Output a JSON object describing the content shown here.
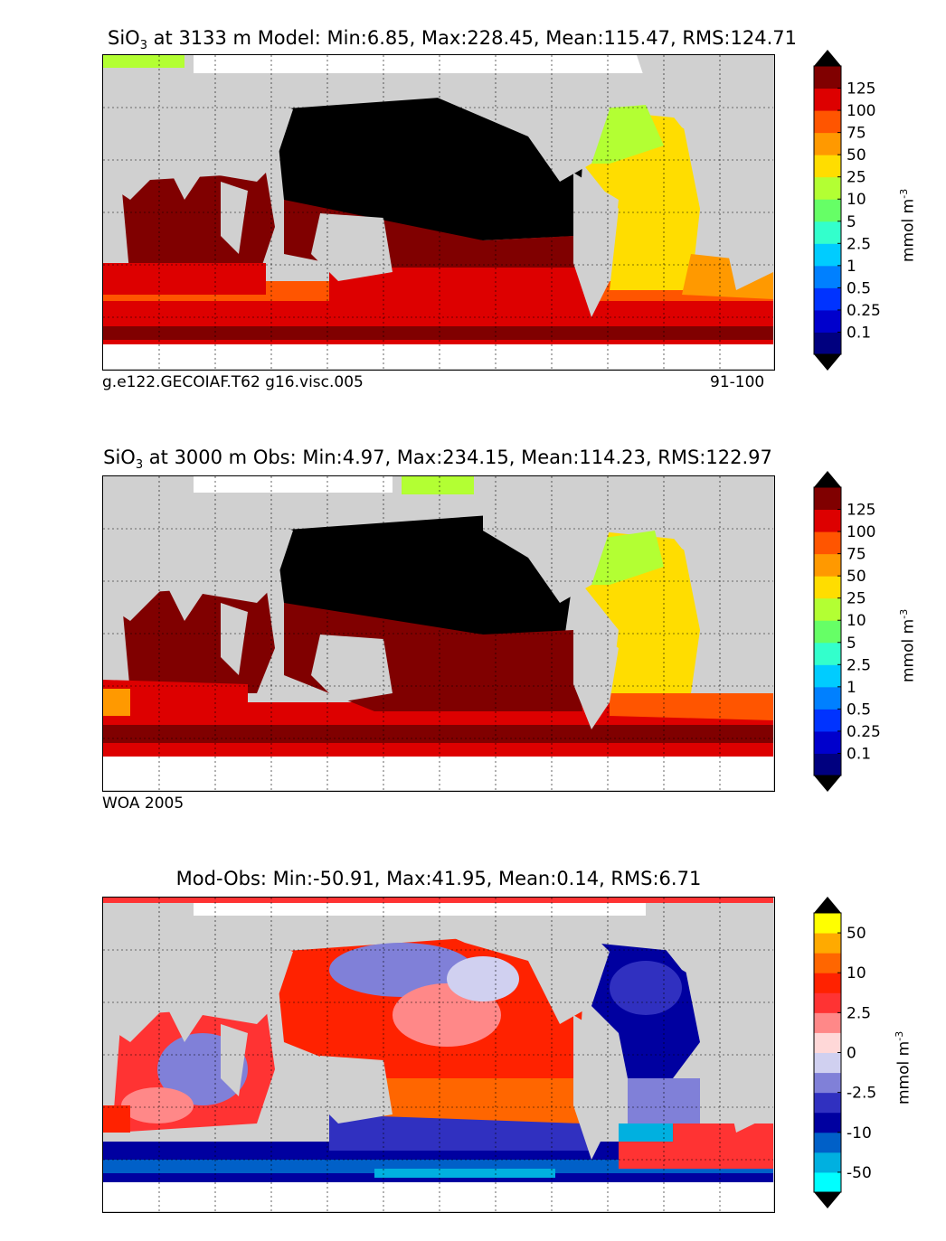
{
  "panels": [
    {
      "id": "model",
      "title_species": "SiO",
      "title_sub": "3",
      "title_rest": " at 3133 m Model: Min:6.85, Max:228.45, Mean:115.47, RMS:124.71",
      "caption_left": "g.e122.GECOIAF.T62 g16.visc.005",
      "caption_right": "91-100"
    },
    {
      "id": "obs",
      "title_species": "SiO",
      "title_sub": "3",
      "title_rest": " at 3000 m Obs: Min:4.97, Max:234.15, Mean:114.23, RMS:122.97",
      "caption_left": "WOA 2005",
      "caption_right": ""
    },
    {
      "id": "diff",
      "title_species": "",
      "title_sub": "",
      "title_rest": "Mod-Obs: Min:-50.91, Max:41.95, Mean:0.14, RMS:6.71",
      "caption_left": "",
      "caption_right": ""
    }
  ],
  "colorbar_main": {
    "units": "mmol m",
    "units_sup": "-3",
    "colors": [
      "#00007f",
      "#0000cc",
      "#0033ff",
      "#0080ff",
      "#00ccff",
      "#33ffcc",
      "#66ff66",
      "#b3ff33",
      "#ffdd00",
      "#ff9900",
      "#ff5500",
      "#dd0000",
      "#800000"
    ],
    "over_color": "#000000",
    "under_color": "#000000",
    "tick_labels": [
      "0.1",
      "0.25",
      "0.5",
      "1",
      "2.5",
      "5",
      "10",
      "25",
      "50",
      "75",
      "100",
      "125"
    ]
  },
  "colorbar_diff": {
    "units": "mmol m",
    "units_sup": "-3",
    "colors": [
      "#00ffff",
      "#00b0e0",
      "#0060c8",
      "#0000a0",
      "#3030c0",
      "#8080d8",
      "#d0d0f0",
      "#ffd8d8",
      "#ff8888",
      "#ff3333",
      "#ff2200",
      "#ff6600",
      "#ffaa00",
      "#ffff00"
    ],
    "over_color": "#000000",
    "under_color": "#000000",
    "tick_labels": [
      "-50",
      "-10",
      "-2.5",
      "0",
      "2.5",
      "10",
      "50"
    ]
  },
  "colors": {
    "land": "#d0d0d0",
    "nodata": "#ffffff",
    "pacific_high": "#000000",
    "deep_red": "#800000",
    "red": "#dd0000",
    "orange_red": "#ff5500",
    "yellow": "#ffdd00",
    "yellow_green": "#b3ff33",
    "diff_blue": "#3030c0",
    "diff_red": "#ff3333",
    "diff_orange": "#ff6600"
  }
}
